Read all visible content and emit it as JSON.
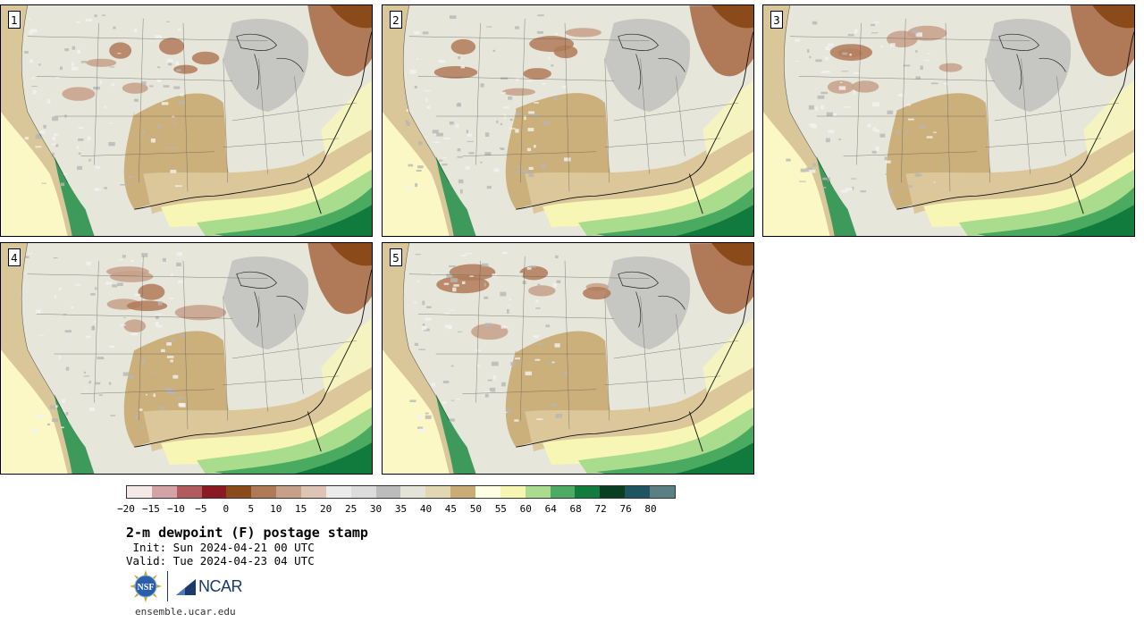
{
  "panels": [
    {
      "label": "1"
    },
    {
      "label": "2"
    },
    {
      "label": "3"
    },
    {
      "label": "4"
    },
    {
      "label": "5"
    }
  ],
  "colorbar": {
    "colors": [
      "#f4e8e8",
      "#d4a3a5",
      "#b15b5f",
      "#8c1a22",
      "#8a4a1a",
      "#b07a58",
      "#c7a08a",
      "#ddc4b5",
      "#ebebeb",
      "#dcdcdc",
      "#bcbcbc",
      "#e3e3d7",
      "#e3d6b2",
      "#c9ac76",
      "#ffffe4",
      "#f6f5b2",
      "#a8dc8e",
      "#4dab62",
      "#107c3e",
      "#0a3e22",
      "#1f5561",
      "#5a8084"
    ],
    "ticks": [
      "−20",
      "−15",
      "−10",
      "−5",
      "0",
      "5",
      "10",
      "15",
      "20",
      "25",
      "30",
      "35",
      "40",
      "45",
      "50",
      "55",
      "60",
      "64",
      "68",
      "72",
      "76",
      "80"
    ]
  },
  "title": "2-m dewpoint (F) postage stamp",
  "init": " Init: Sun 2024-04-21 00 UTC",
  "valid": "Valid: Tue 2024-04-23 04 UTC",
  "logos": {
    "nsf": "NSF",
    "ncar": "NCAR"
  },
  "website": "ensemble.ucar.edu"
}
